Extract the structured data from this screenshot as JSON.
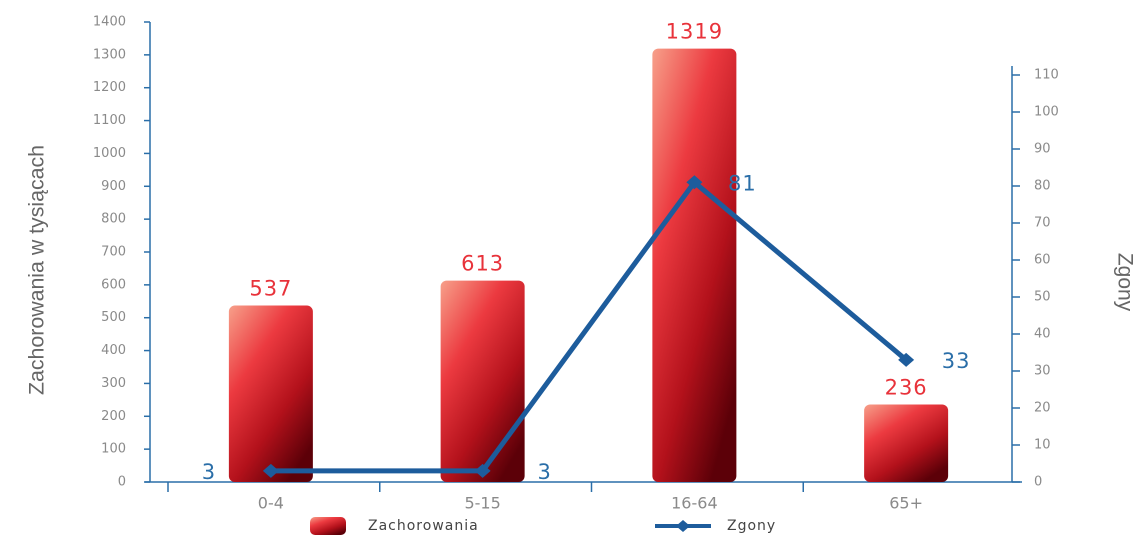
{
  "chart_data": {
    "type": "bar",
    "categories": [
      "0-4",
      "5-15",
      "16-64",
      "65+"
    ],
    "series": [
      {
        "name": "Zachorowania",
        "type": "bar",
        "color": "#e8323a",
        "values": [
          537,
          613,
          1319,
          236
        ]
      },
      {
        "name": "Zgony",
        "type": "line",
        "axis": "y2",
        "color": "#1d5c9c",
        "values": [
          3,
          3,
          81,
          33
        ]
      }
    ],
    "y_label": "Zachorowania w tysiącach",
    "y2_label": "Zgony",
    "ylim": [
      0,
      1400
    ],
    "yticks": [
      0,
      100,
      200,
      300,
      400,
      500,
      600,
      700,
      800,
      900,
      1000,
      1100,
      1200,
      1300,
      1400
    ],
    "y2lim": [
      0,
      110
    ],
    "y2ticks": [
      0,
      10,
      20,
      30,
      40,
      50,
      60,
      70,
      80,
      90,
      100,
      110
    ],
    "legend": "bottom"
  }
}
